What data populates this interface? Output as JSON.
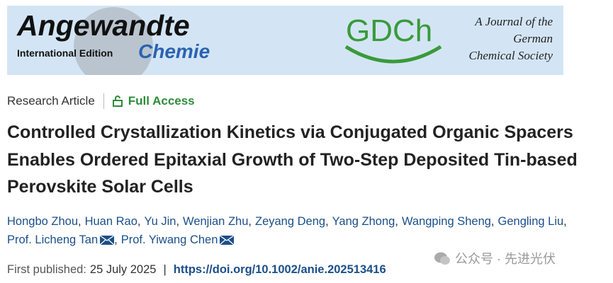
{
  "header": {
    "journal_name": "Angewandte",
    "edition": "International Edition",
    "subtitle": "Chemie",
    "society_logo": "GDCh",
    "society_text": [
      "A Journal of the",
      "German",
      "Chemical Society"
    ]
  },
  "article": {
    "type": "Research Article",
    "access": "Full Access",
    "title": "Controlled Crystallization Kinetics via Conjugated Organic Spacers Enables Ordered Epitaxial Growth of Two-Step Deposited Tin-based Perovskite Solar Cells",
    "authors": [
      "Hongbo Zhou",
      "Huan Rao",
      "Yu Jin",
      "Wenjian Zhu",
      "Zeyang Deng",
      "Yang Zhong",
      "Wangping Sheng",
      "Gengling Liu",
      "Prof. Licheng Tan",
      "Prof. Yiwang Chen"
    ],
    "corresponding": [
      8,
      9
    ],
    "author_separator": ",",
    "published_label": "First published:",
    "published_date": "25 July 2025",
    "date_separator": "|",
    "doi": "https://doi.org/10.1002/anie.202513416"
  },
  "watermark": "公众号 · 先进光伏"
}
